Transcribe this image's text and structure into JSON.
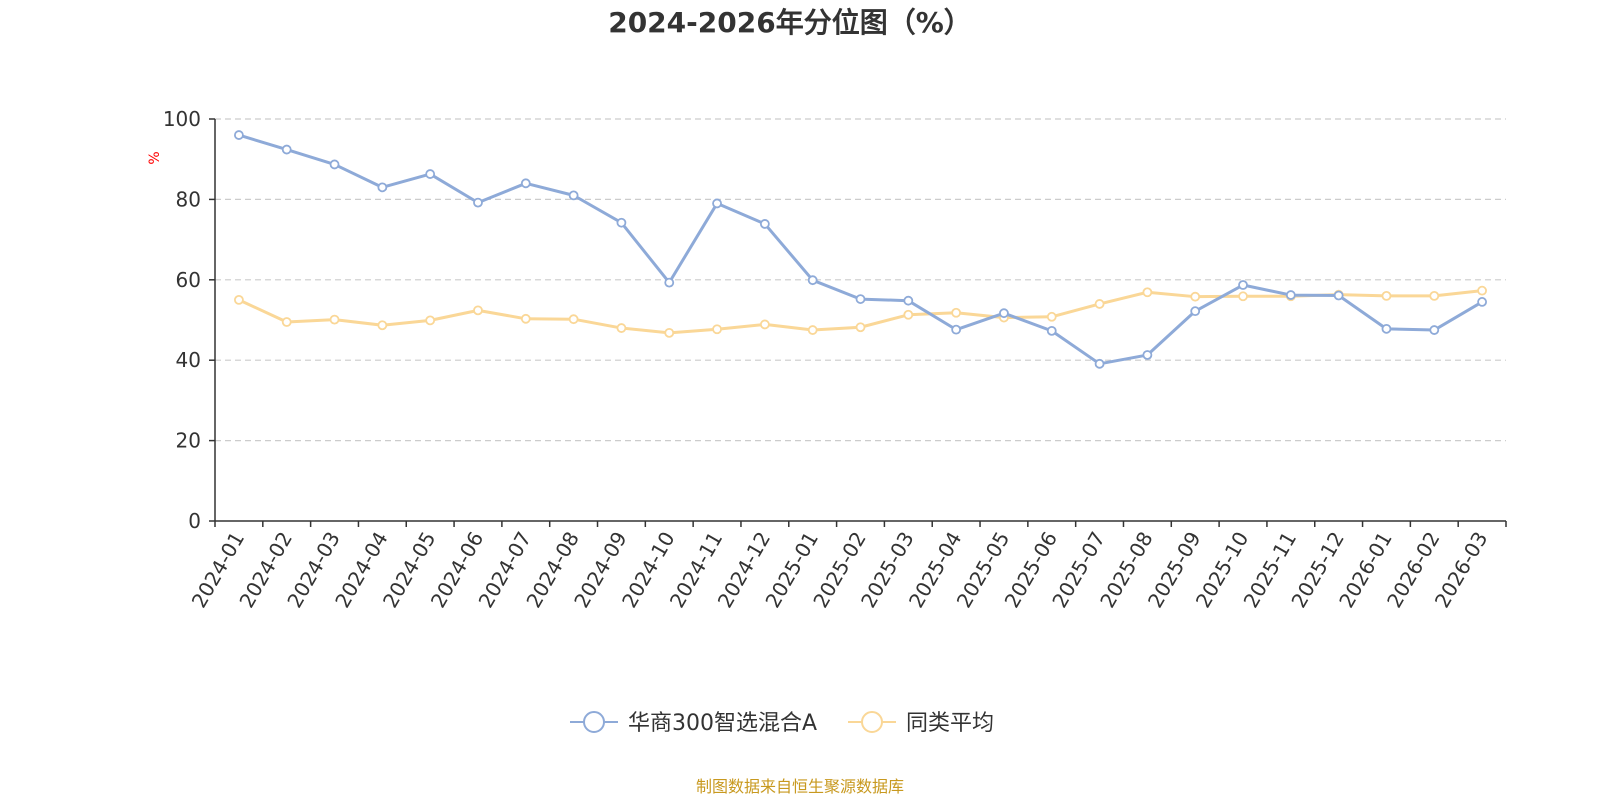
{
  "chart_data": {
    "type": "line",
    "title": "2024-2026年分位图（%）",
    "ylabel": "%",
    "ylim": [
      0,
      100
    ],
    "yticks": [
      0,
      20,
      40,
      60,
      80,
      100
    ],
    "grid": true,
    "legend_position": "bottom-center",
    "categories": [
      "2024-01",
      "2024-02",
      "2024-03",
      "2024-04",
      "2024-05",
      "2024-06",
      "2024-07",
      "2024-08",
      "2024-09",
      "2024-10",
      "2024-11",
      "2024-12",
      "2025-01",
      "2025-02",
      "2025-03",
      "2025-04",
      "2025-05",
      "2025-06",
      "2025-07",
      "2025-08",
      "2025-09",
      "2025-10",
      "2025-11",
      "2025-12",
      "2026-01",
      "2026-02",
      "2026-03"
    ],
    "series": [
      {
        "name": "华商300智选混合A",
        "color": "#8eaad8",
        "values": [
          96.0,
          92.4,
          88.7,
          83.0,
          86.3,
          79.2,
          84.0,
          81.0,
          74.2,
          59.3,
          79.0,
          73.9,
          59.9,
          55.2,
          54.8,
          47.6,
          51.7,
          47.3,
          39.1,
          41.3,
          52.2,
          58.7,
          56.2,
          56.1,
          47.8,
          47.5,
          54.5
        ]
      },
      {
        "name": "同类平均",
        "color": "#fad797",
        "values": [
          55.0,
          49.5,
          50.1,
          48.7,
          49.9,
          52.4,
          50.3,
          50.2,
          48.0,
          46.8,
          47.7,
          48.9,
          47.5,
          48.2,
          51.3,
          51.8,
          50.6,
          50.8,
          54.0,
          56.9,
          55.8,
          55.9,
          55.9,
          56.3,
          56.0,
          56.0,
          57.3
        ]
      }
    ]
  },
  "source_text": "制图数据来自恒生聚源数据库",
  "colors": {
    "axis": "#333333",
    "grid": "#cccccc",
    "unit": "#ff0000",
    "source": "#c8991f"
  }
}
